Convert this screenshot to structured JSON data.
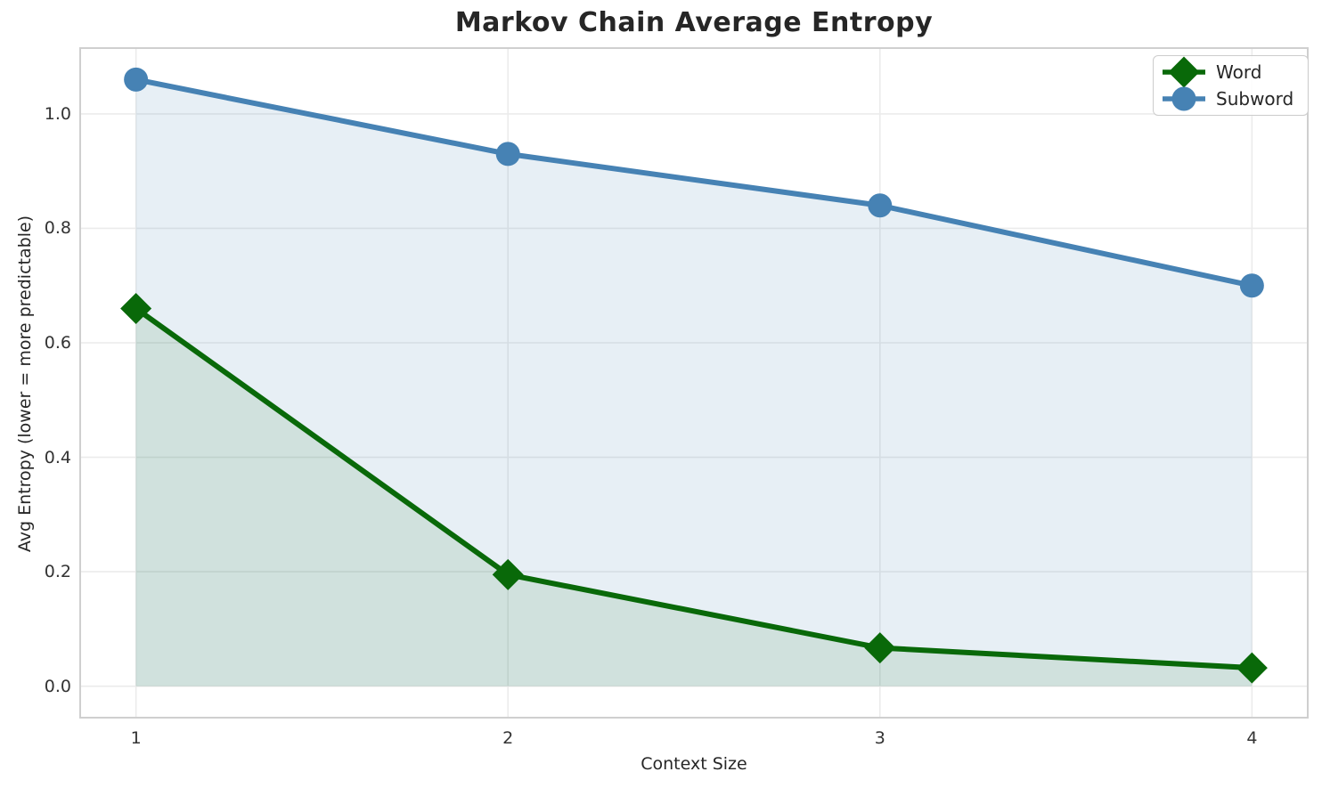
{
  "chart_data": {
    "type": "line",
    "title": "Markov Chain Average Entropy",
    "xlabel": "Context Size",
    "ylabel": "Avg Entropy (lower = more predictable)",
    "x": [
      1,
      2,
      3,
      4
    ],
    "x_tick_labels": [
      "1",
      "2",
      "3",
      "4"
    ],
    "y_tick_values": [
      0.0,
      0.2,
      0.4,
      0.6,
      0.8,
      1.0
    ],
    "y_tick_labels": [
      "0.0",
      "0.2",
      "0.4",
      "0.6",
      "0.8",
      "1.0"
    ],
    "xlim": [
      0.85,
      4.15
    ],
    "ylim": [
      -0.055,
      1.115
    ],
    "grid": true,
    "grid_color": "#ebebeb",
    "frame_color": "#cfcfcf",
    "legend_position": "upper right",
    "fill_baseline": 0.0,
    "series": [
      {
        "name": "Word",
        "marker": "diamond",
        "color": "#096909",
        "fill_color": "rgba(9,105,9,0.10)",
        "values": [
          0.66,
          0.195,
          0.067,
          0.032
        ]
      },
      {
        "name": "Subword",
        "marker": "circle",
        "color": "#4682b4",
        "fill_color": "rgba(70,130,180,0.13)",
        "values": [
          1.06,
          0.93,
          0.84,
          0.7
        ]
      }
    ]
  }
}
